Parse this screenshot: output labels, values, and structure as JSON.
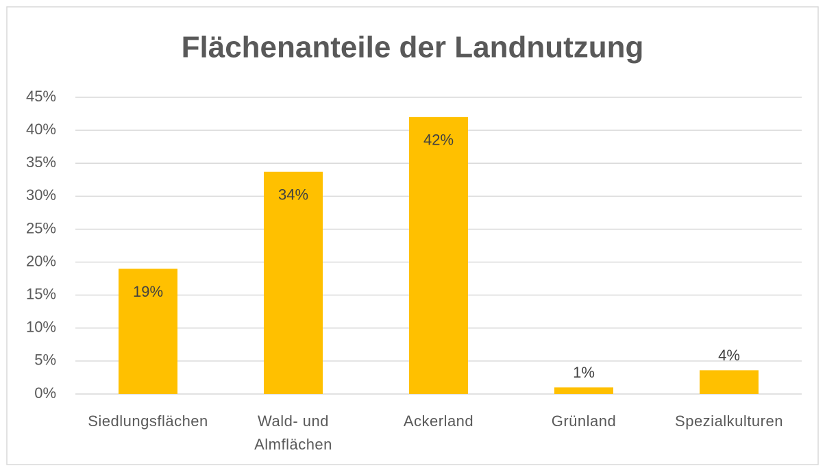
{
  "chart_data": {
    "type": "bar",
    "title": "Flächenanteile der Landnutzung",
    "categories": [
      "Siedlungsflächen",
      "Wald- und Almflächen",
      "Ackerland",
      "Grünland",
      "Spezialkulturen"
    ],
    "values": [
      19,
      33.7,
      42,
      1,
      3.6
    ],
    "value_labels": [
      "19%",
      "34%",
      "42%",
      "1%",
      "4%"
    ],
    "color": "#ffc000",
    "ylim": [
      0,
      45
    ],
    "yticks": [
      {
        "value": 0,
        "label": "0%"
      },
      {
        "value": 5,
        "label": "5%"
      },
      {
        "value": 10,
        "label": "10%"
      },
      {
        "value": 15,
        "label": "15%"
      },
      {
        "value": 20,
        "label": "20%"
      },
      {
        "value": 25,
        "label": "25%"
      },
      {
        "value": 30,
        "label": "30%"
      },
      {
        "value": 35,
        "label": "35%"
      },
      {
        "value": 40,
        "label": "40%"
      },
      {
        "value": 45,
        "label": "45%"
      }
    ],
    "grid": true
  }
}
